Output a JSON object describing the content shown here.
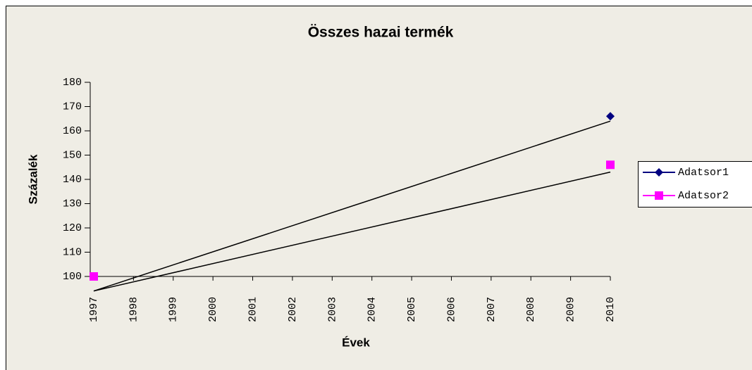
{
  "chart_data": {
    "type": "line",
    "title": "Összes hazai termék",
    "x_label": "Évek",
    "y_label": "Százalék",
    "categories": [
      "1997",
      "1998",
      "1999",
      "2000",
      "2001",
      "2002",
      "2003",
      "2004",
      "2005",
      "2006",
      "2007",
      "2008",
      "2009",
      "2010"
    ],
    "series": [
      {
        "name": "Adatsor1",
        "color": "#000080",
        "marker": "diamond",
        "values": [
          100,
          null,
          null,
          null,
          null,
          null,
          null,
          null,
          null,
          null,
          null,
          null,
          null,
          166
        ],
        "trend": [
          94,
          164
        ]
      },
      {
        "name": "Adatsor2",
        "color": "#ff00ff",
        "marker": "square",
        "values": [
          100,
          null,
          null,
          null,
          null,
          null,
          null,
          null,
          null,
          null,
          null,
          null,
          null,
          146
        ],
        "trend": [
          94,
          143
        ]
      }
    ],
    "ylim": [
      100,
      180
    ],
    "yticks": [
      100,
      110,
      120,
      130,
      140,
      150,
      160,
      170,
      180
    ],
    "grid": false,
    "legend": "right"
  }
}
